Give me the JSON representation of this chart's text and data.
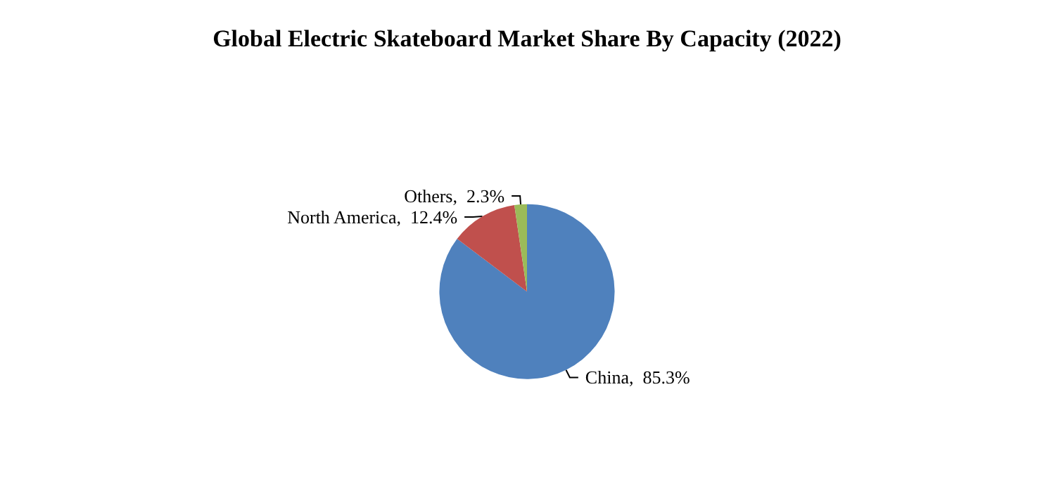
{
  "chart_data": {
    "type": "pie",
    "title": "Global Electric Skateboard Market Share By Capacity (2022)",
    "categories": [
      "China",
      "North America",
      "Others"
    ],
    "values": [
      85.3,
      12.4,
      2.3
    ],
    "value_labels": [
      "85.3%",
      "12.4%",
      "2.3%"
    ],
    "colors": [
      "#4f81bd",
      "#c0504d",
      "#9bbb59"
    ]
  }
}
